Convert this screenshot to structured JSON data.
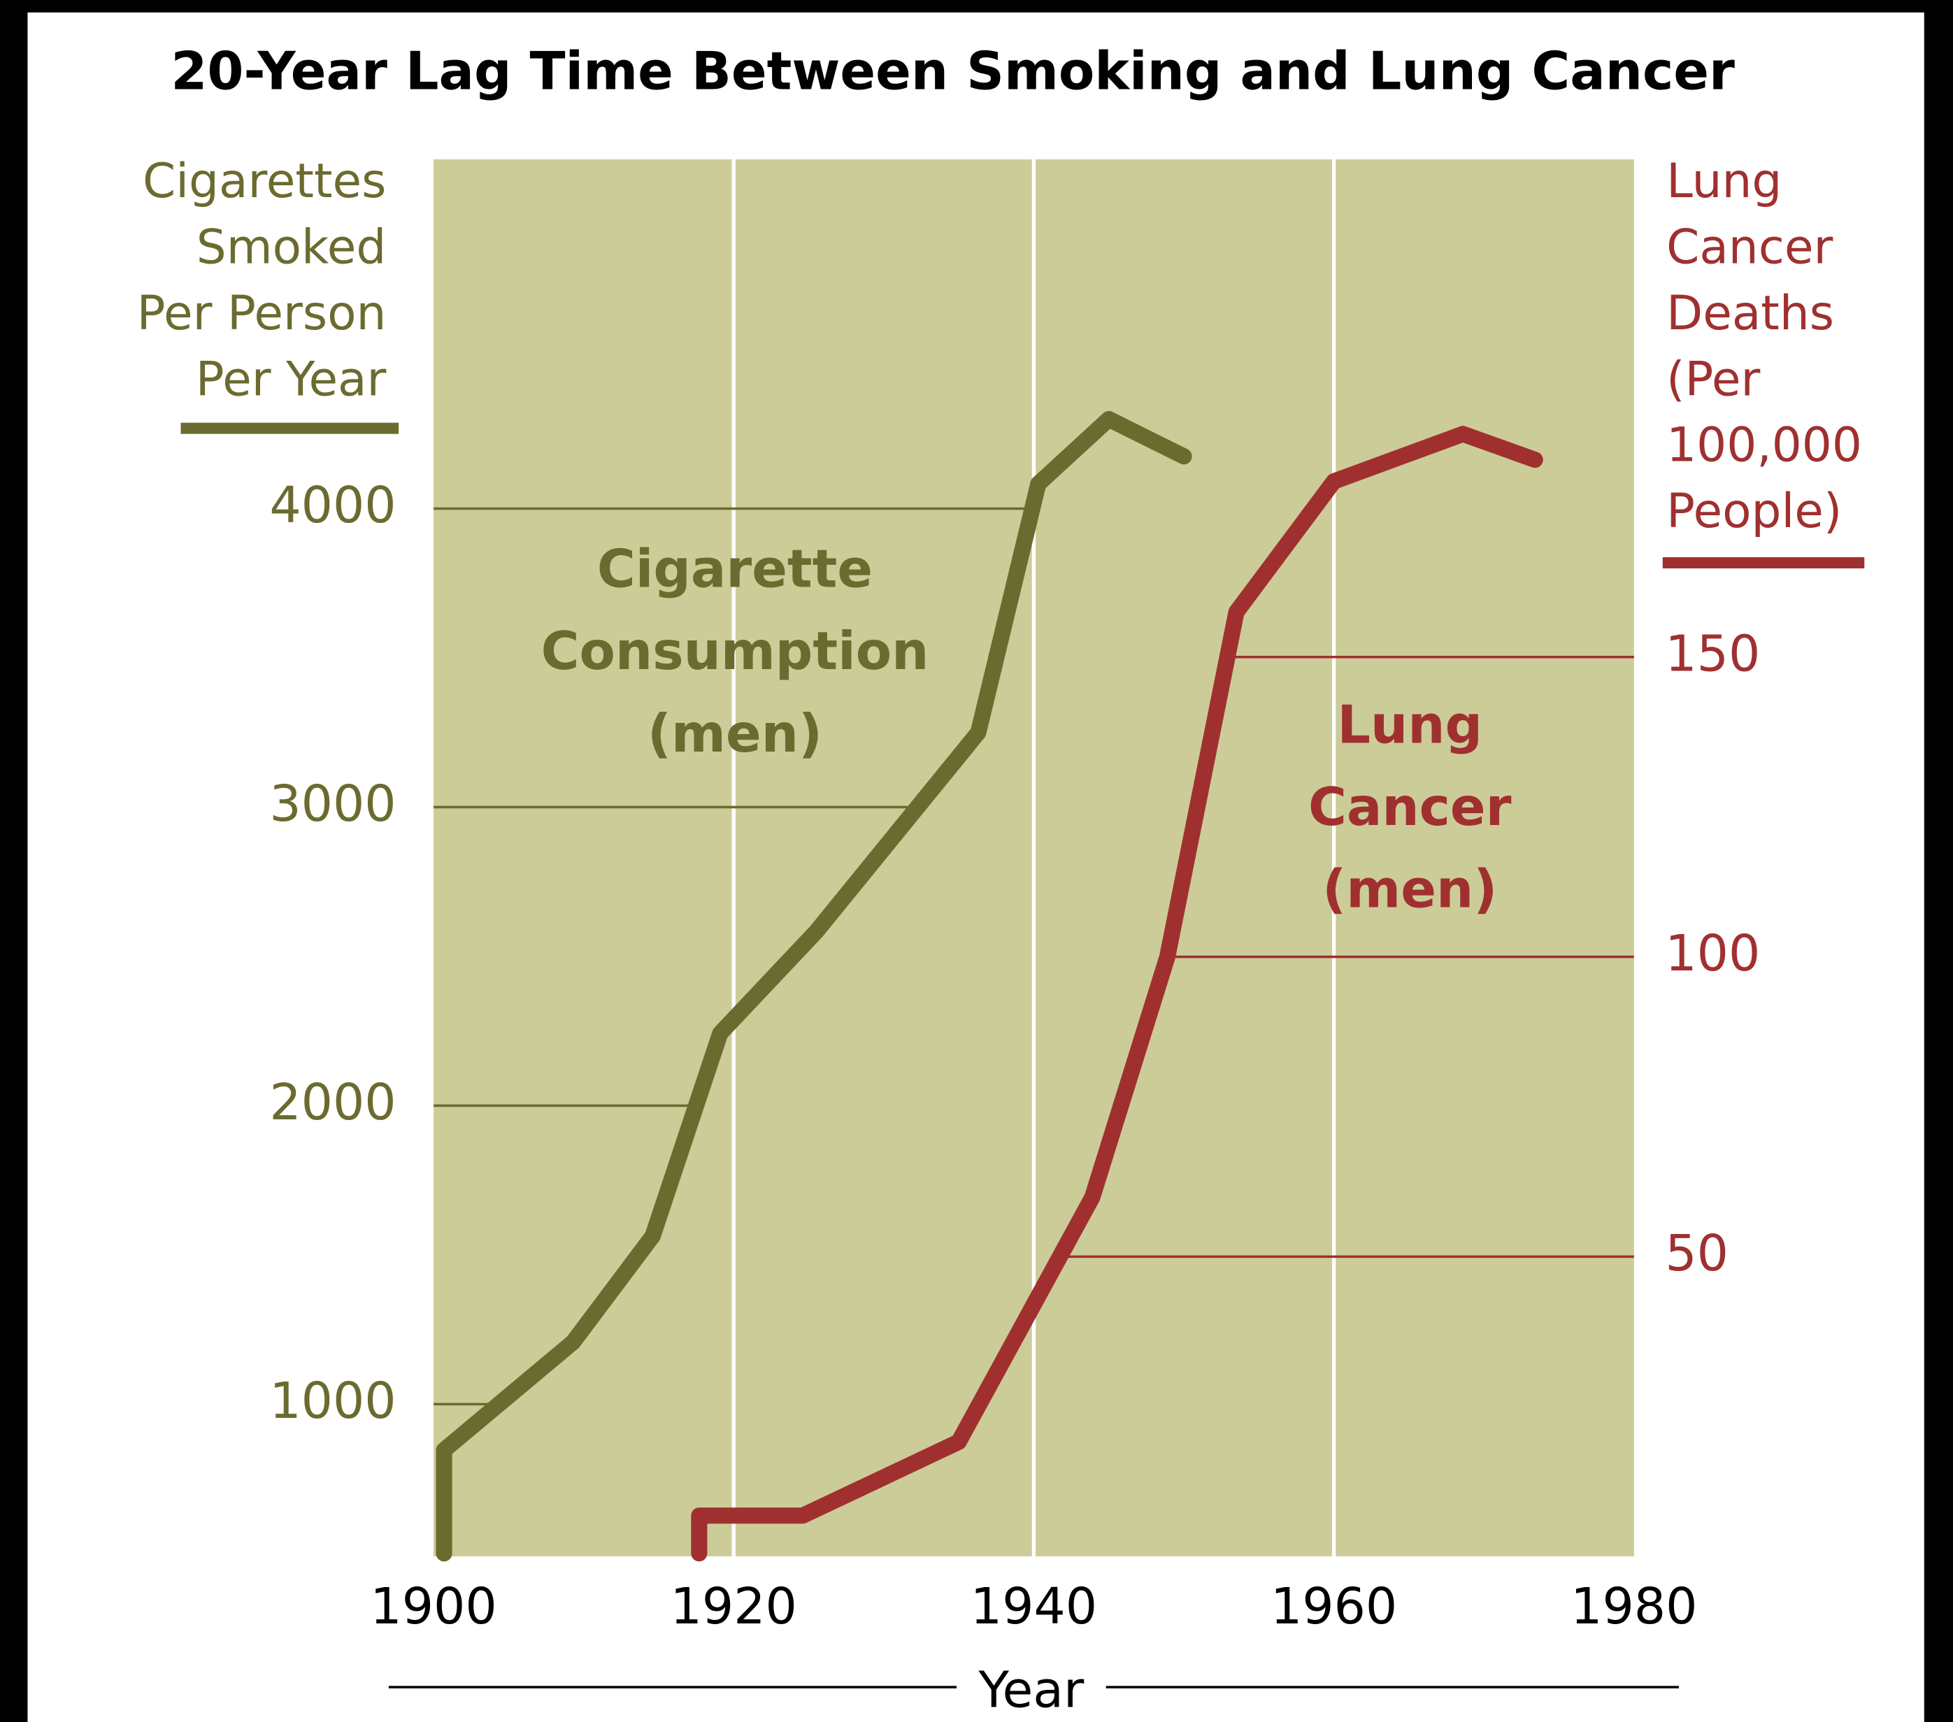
{
  "chart_data": {
    "type": "line",
    "title": "20-Year Lag Time Between Smoking and Lung Cancer",
    "xlabel": "Year",
    "ylabel": [
      "Cigarettes",
      "Smoked",
      "Per Person",
      "Per Year"
    ],
    "y2label": [
      "Lung",
      "Cancer",
      "Deaths",
      "(Per",
      "100,000",
      "People)"
    ],
    "xlim": [
      1900,
      1980
    ],
    "xticks": [
      1900,
      1920,
      1940,
      1960,
      1980
    ],
    "ylim": [
      490,
      5170
    ],
    "yticks": [
      1000,
      2000,
      3000,
      4000
    ],
    "y2lim": [
      0,
      233
    ],
    "y2ticks": [
      50,
      100,
      150
    ],
    "grid": true,
    "series": [
      {
        "name": [
          "Cigarette",
          "Consumption",
          "(men)"
        ],
        "color": "#6b6b30",
        "axis": "y",
        "x": [
          1900.7,
          1900.7,
          1909.3,
          1914.6,
          1919.1,
          1925.5,
          1936.3,
          1940.3,
          1945.0,
          1950.0
        ],
        "values": [
          500,
          846,
          1208,
          1563,
          2242,
          2583,
          3250,
          4083,
          4300,
          4175
        ]
      },
      {
        "name": [
          "Lung",
          "Cancer",
          "(men)"
        ],
        "color": "#a03030",
        "axis": "y2",
        "x": [
          1917.7,
          1917.7,
          1924.6,
          1935.0,
          1943.9,
          1948.9,
          1953.5,
          1960.0,
          1968.6,
          1973.4
        ],
        "values": [
          0.5,
          6.8,
          6.8,
          19.1,
          59.9,
          100,
          157.5,
          179.3,
          187.2,
          182.9
        ]
      }
    ]
  }
}
